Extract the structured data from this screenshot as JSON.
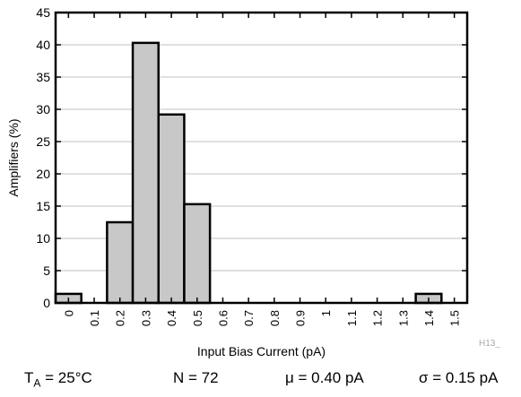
{
  "chart_data": {
    "type": "bar",
    "xlabel": "Input Bias Current (pA)",
    "ylabel": "Amplifiers (%)",
    "ylim": [
      0,
      45
    ],
    "yticks": [
      "0",
      "5",
      "10",
      "15",
      "20",
      "25",
      "30",
      "35",
      "40",
      "45"
    ],
    "xticks": [
      "0",
      "0.1",
      "0.2",
      "0.3",
      "0.4",
      "0.5",
      "0.6",
      "0.7",
      "0.8",
      "0.9",
      "1",
      "1.1",
      "1.2",
      "1.3",
      "1.4",
      "1.5"
    ],
    "x": [
      0,
      0.1,
      0.2,
      0.3,
      0.4,
      0.5,
      0.6,
      0.7,
      0.8,
      0.9,
      1,
      1.1,
      1.2,
      1.3,
      1.4,
      1.5
    ],
    "values": [
      1.4,
      0,
      12.5,
      40.3,
      29.2,
      15.3,
      0,
      0,
      0,
      0,
      0,
      0,
      0,
      0,
      1.4,
      0
    ],
    "grid": "horizontal",
    "bar_color": "#c8c8c8",
    "annotation": "H13_"
  },
  "stats": {
    "ta_label": "T",
    "ta_sub": "A",
    "ta_value": " = 25°C",
    "n": "N = 72",
    "mu": "μ = 0.40 pA",
    "sigma": "σ = 0.15 pA"
  }
}
